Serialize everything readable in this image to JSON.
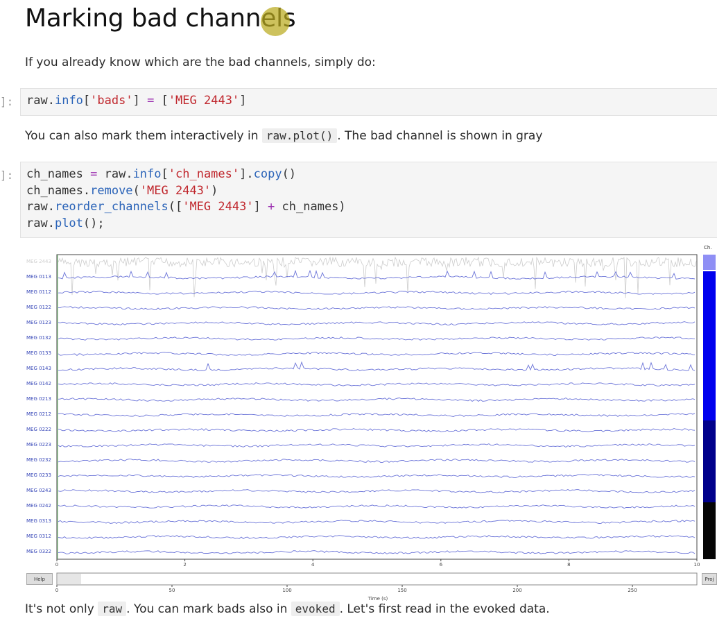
{
  "heading": "Marking bad channels",
  "intro": "If you already know which are the bad channels, simply do:",
  "prompt1": "]:",
  "cell1": {
    "line1": [
      "raw",
      ".",
      "info",
      "[",
      "'bads'",
      "] ",
      "=",
      " [",
      "'MEG 2443'",
      "]"
    ]
  },
  "para2": {
    "before": "You can also mark them interactively in ",
    "code": "raw.plot()",
    "after": ". The bad channel is shown in gray"
  },
  "prompt2": "]:",
  "cell2": {
    "l1": {
      "a": "ch_names ",
      "b": "=",
      "c": " raw.",
      "d": "info",
      "e": "[",
      "f": "'ch_names'",
      "g": "].",
      "h": "copy",
      "i": "()"
    },
    "l2": {
      "a": "ch_names.",
      "b": "remove",
      "c": "(",
      "d": "'MEG 2443'",
      "e": ")"
    },
    "l3": {
      "a": "raw.",
      "b": "reorder_channels",
      "c": "([",
      "d": "'MEG 2443'",
      "e": "] ",
      "f": "+",
      "g": " ch_names)"
    },
    "l4": {
      "a": "raw.",
      "b": "plot",
      "c": "();"
    }
  },
  "plot": {
    "scrollbar_label": "Ch.",
    "bad_channel": "MEG 2443",
    "channels": [
      "MEG 0113",
      "MEG 0112",
      "MEG 0122",
      "MEG 0123",
      "MEG 0132",
      "MEG 0133",
      "MEG 0143",
      "MEG 0142",
      "MEG 0213",
      "MEG 0212",
      "MEG 0222",
      "MEG 0223",
      "MEG 0232",
      "MEG 0233",
      "MEG 0243",
      "MEG 0242",
      "MEG 0313",
      "MEG 0312",
      "MEG 0322"
    ],
    "time_ticks": [
      "0",
      "2",
      "4",
      "6",
      "8",
      "10"
    ],
    "overview_ticks": [
      "0",
      "50",
      "100",
      "150",
      "200",
      "250"
    ],
    "overview_label": "Time (s)",
    "help_button": "Help",
    "proj_button": "Proj",
    "colors": {
      "trace": "#6a73d8",
      "bad": "#cccccc",
      "scroll_blue": "#0000ee",
      "scroll_dark": "#00008b"
    }
  },
  "para3": {
    "a": "It's not only ",
    "code1": "raw",
    "b": ". You can mark bads also in ",
    "code2": "evoked",
    "c": ". Let's first read in the evoked data."
  }
}
